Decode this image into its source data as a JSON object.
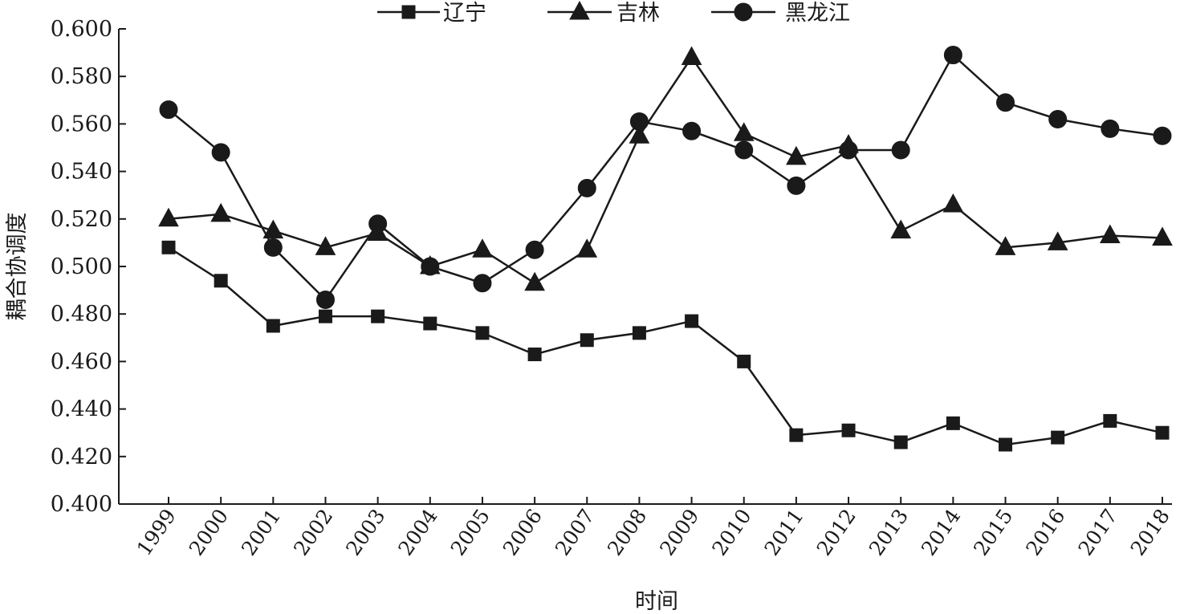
{
  "chart_data": {
    "type": "line",
    "title": "",
    "xlabel": "时间",
    "ylabel": "耦合协调度",
    "categories": [
      "1999",
      "2000",
      "2001",
      "2002",
      "2003",
      "2004",
      "2005",
      "2006",
      "2007",
      "2008",
      "2009",
      "2010",
      "2011",
      "2012",
      "2013",
      "2014",
      "2015",
      "2016",
      "2017",
      "2018"
    ],
    "ylim": [
      0.4,
      0.6
    ],
    "yticks": [
      "0.400",
      "0.420",
      "0.440",
      "0.460",
      "0.480",
      "0.500",
      "0.520",
      "0.540",
      "0.560",
      "0.580",
      "0.600"
    ],
    "grid": false,
    "legend_position": "top-center",
    "series": [
      {
        "name": "辽宁",
        "marker": "square",
        "values": [
          0.508,
          0.494,
          0.475,
          0.479,
          0.479,
          0.476,
          0.472,
          0.463,
          0.469,
          0.472,
          0.477,
          0.46,
          0.429,
          0.431,
          0.426,
          0.434,
          0.425,
          0.428,
          0.435,
          0.43
        ]
      },
      {
        "name": "吉林",
        "marker": "triangle",
        "values": [
          0.52,
          0.522,
          0.515,
          0.508,
          0.514,
          0.5,
          0.507,
          0.493,
          0.507,
          0.555,
          0.588,
          0.556,
          0.546,
          0.551,
          0.515,
          0.526,
          0.508,
          0.51,
          0.513,
          0.512
        ]
      },
      {
        "name": "黑龙江",
        "marker": "circle",
        "values": [
          0.566,
          0.548,
          0.508,
          0.486,
          0.518,
          0.5,
          0.493,
          0.507,
          0.533,
          0.561,
          0.557,
          0.549,
          0.534,
          0.549,
          0.549,
          0.589,
          0.569,
          0.562,
          0.558,
          0.555
        ]
      }
    ],
    "colors": {
      "line": "#1a1a1a"
    }
  }
}
